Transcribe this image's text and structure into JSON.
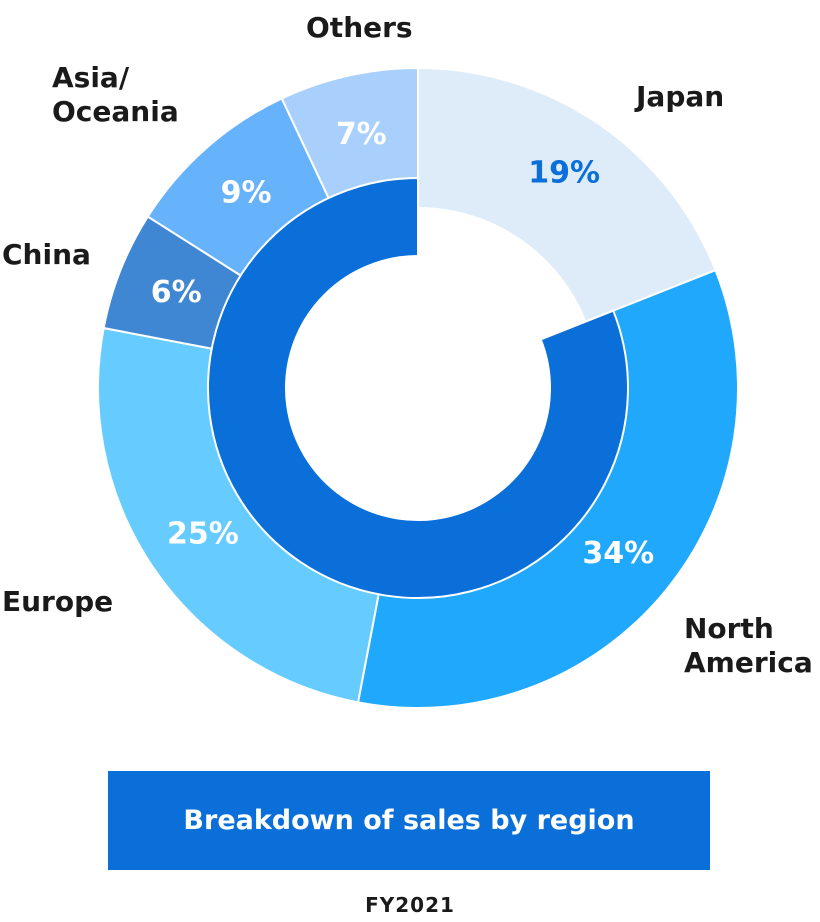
{
  "chart_data": {
    "type": "pie",
    "categories": [
      "Japan",
      "North\nAmerica",
      "Europe",
      "China",
      "Asia/\nOceania",
      "Others"
    ],
    "values": [
      19,
      34,
      25,
      6,
      9,
      7
    ],
    "value_labels": [
      "19%",
      "34%",
      "25%",
      "6%",
      "9%",
      "7%"
    ],
    "colors": [
      "#deecfa",
      "#1fa8fc",
      "#66ccff",
      "#3f87d3",
      "#66b2fb",
      "#a9d0fc"
    ],
    "label_colors": [
      "#0a6fd8",
      "#ffffff",
      "#ffffff",
      "#ffffff",
      "#ffffff",
      "#ffffff"
    ],
    "inner_ring_color": "#0a6fd8",
    "title": "Breakdown of sales by region",
    "subtitle": "FY2021"
  }
}
